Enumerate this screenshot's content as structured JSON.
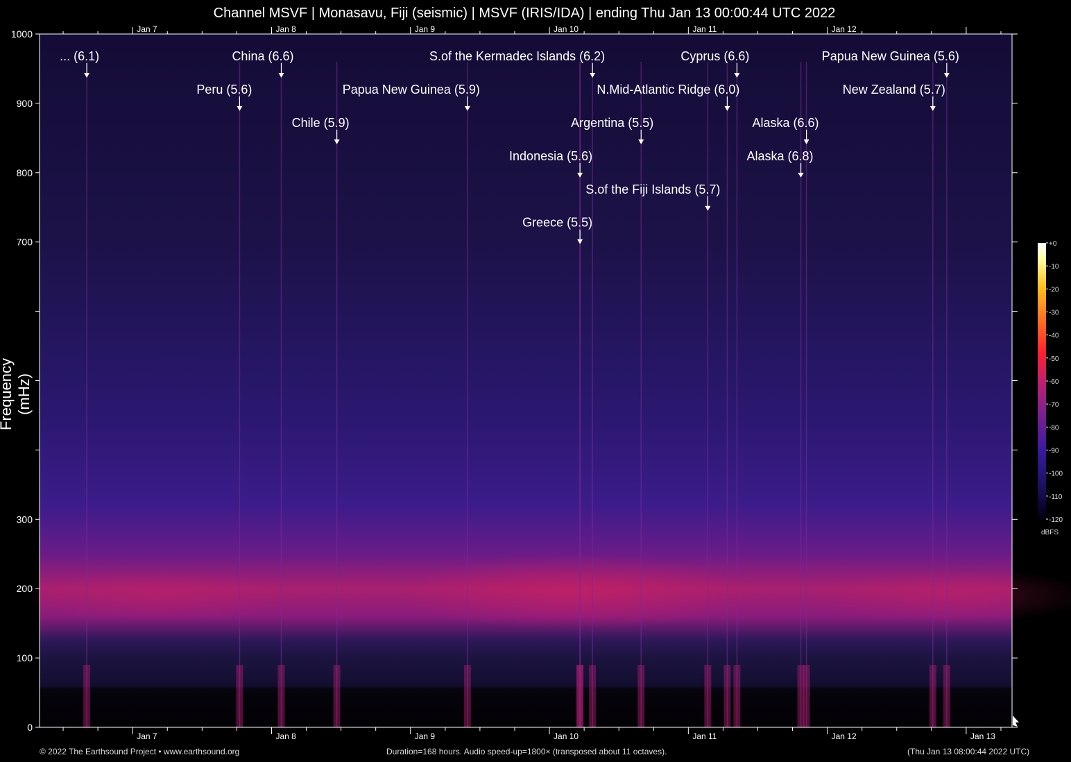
{
  "chart_data": {
    "type": "heatmap",
    "title": "Channel MSVF | Monasavu, Fiji (seismic) | MSVF (IRIS/IDA) | ending Thu Jan 13 00:00:44 UTC 2022",
    "ylabel": "Frequency (mHz)",
    "xlabel": "",
    "ylim": [
      0,
      1000
    ],
    "yticks": [
      0,
      100,
      200,
      300,
      700,
      800,
      900,
      1000
    ],
    "x_ticks_bottom": [
      "Jan 7",
      "Jan 8",
      "Jan 9",
      "Jan 10",
      "Jan 11",
      "Jan 12",
      "Jan 13"
    ],
    "x_ticks_top": [
      "Jan 7",
      "Jan 8",
      "Jan 9",
      "Jan 10",
      "Jan 11",
      "Jan 12"
    ],
    "x_range_days": [
      6.33,
      13.33
    ],
    "colorbar": {
      "unit": "dBFS",
      "ticks": [
        "+0",
        "-10",
        "-20",
        "-30",
        "-40",
        "-50",
        "-60",
        "-70",
        "-80",
        "-90",
        "-100",
        "-110",
        "-120"
      ],
      "colors": [
        "#000010",
        "#1a1060",
        "#3a1aa0",
        "#7a2090",
        "#c02070",
        "#ff2030",
        "#ff7020",
        "#ffc020",
        "#ffffa0",
        "#ffffff"
      ]
    },
    "events": [
      {
        "label": "... (6.1)",
        "day": 6.67
      },
      {
        "label": "Peru (5.6)",
        "day": 7.77
      },
      {
        "label": "China (6.6)",
        "day": 8.07
      },
      {
        "label": "Chile (5.9)",
        "day": 8.47
      },
      {
        "label": "Papua New Guinea (5.9)",
        "day": 9.41
      },
      {
        "label": "Greece (5.5)",
        "day": 10.22
      },
      {
        "label": "Indonesia (5.6)",
        "day": 10.22
      },
      {
        "label": "S.of the Kermadec Islands (6.2)",
        "day": 10.31
      },
      {
        "label": "Argentina (5.5)",
        "day": 10.66
      },
      {
        "label": "S.of the Fiji Islands (5.7)",
        "day": 11.14
      },
      {
        "label": "N.Mid-Atlantic Ridge (6.0)",
        "day": 11.28
      },
      {
        "label": "Cyprus (6.6)",
        "day": 11.35
      },
      {
        "label": "Alaska (6.8)",
        "day": 11.81
      },
      {
        "label": "Alaska (6.6)",
        "day": 11.85
      },
      {
        "label": "New Zealand (5.7)",
        "day": 12.76
      },
      {
        "label": "Papua New Guinea (5.6)",
        "day": 12.86
      }
    ]
  },
  "footer": {
    "copyright": "© 2022 The Earthsound Project • www.earthsound.org",
    "duration": "Duration=168 hours. Audio speed-up=1800× (transposed about 11 octaves).",
    "local_time": "(Thu Jan 13 08:00:44 2022 UTC)"
  }
}
